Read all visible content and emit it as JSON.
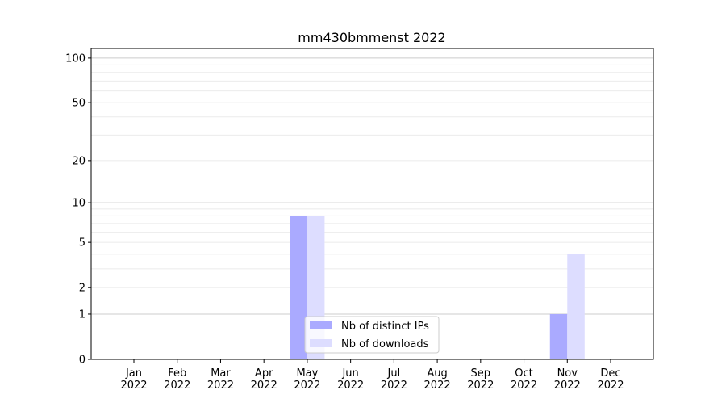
{
  "chart_data": {
    "type": "bar",
    "title": "mm430bmmenst 2022",
    "xlabel": "",
    "ylabel": "",
    "yscale": "log(1+y)",
    "ylim": [
      0,
      116
    ],
    "yticks": [
      0,
      1,
      2,
      5,
      10,
      20,
      50,
      100
    ],
    "grid": "horizontal, major and minor",
    "categories": [
      "Jan\n2022",
      "Feb\n2022",
      "Mar\n2022",
      "Apr\n2022",
      "May\n2022",
      "Jun\n2022",
      "Jul\n2022",
      "Aug\n2022",
      "Sep\n2022",
      "Oct\n2022",
      "Nov\n2022",
      "Dec\n2022"
    ],
    "series": [
      {
        "name": "Nb of distinct IPs",
        "color": "#aaaaff",
        "values": [
          0,
          0,
          0,
          0,
          8,
          0,
          0,
          0,
          0,
          0,
          1,
          0
        ]
      },
      {
        "name": "Nb of downloads",
        "color": "#ddddff",
        "values": [
          0,
          0,
          0,
          0,
          8,
          0,
          0,
          0,
          0,
          0,
          4,
          0
        ]
      }
    ],
    "legend": "bottom-center"
  }
}
